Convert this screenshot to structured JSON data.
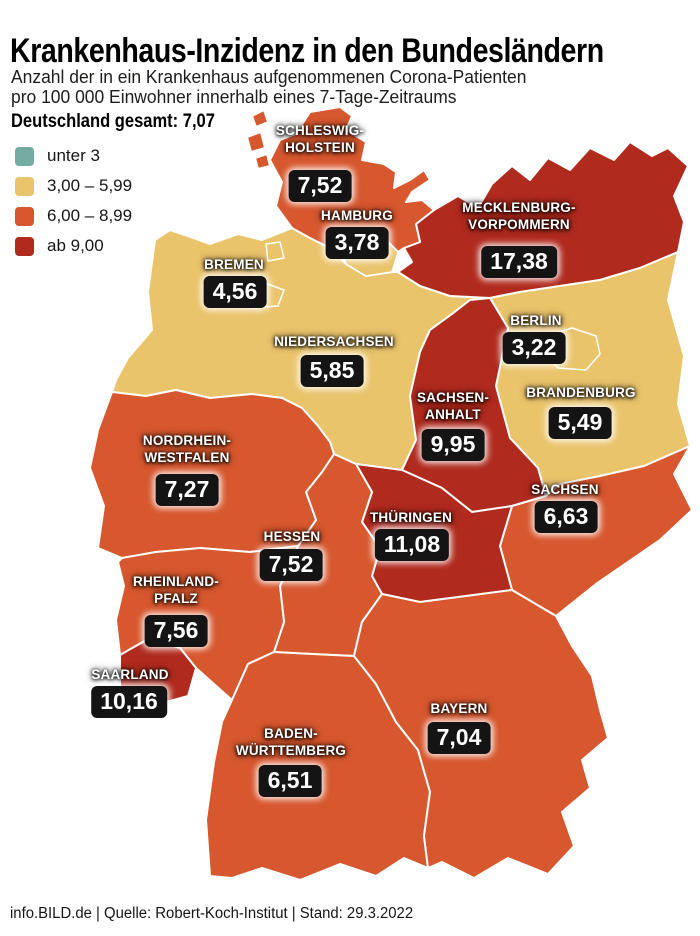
{
  "header": {
    "title": "Krankenhaus-Inzidenz in den Bundesländern",
    "subtitle_line1": "Anzahl der in ein Krankenhaus aufgenommenen Corona-Patienten",
    "subtitle_line2": "pro 100 000 Einwohner innerhalb eines 7-Tage-Zeitraums",
    "total_label": "Deutschland gesamt: 7,07"
  },
  "footer": {
    "source_line": "info.BILD.de | Quelle: Robert-Koch-Institut | Stand: 29.3.2022"
  },
  "chart_data": {
    "type": "choropleth_map",
    "title": "Krankenhaus-Inzidenz in den Bundesländern",
    "metric": "Anzahl der in ein Krankenhaus aufgenommenen Corona-Patienten pro 100 000 Einwohner innerhalb eines 7-Tage-Zeitraums",
    "germany_total": 7.07,
    "germany_total_display": "7,07",
    "classes": [
      "unter 3",
      "3,00 – 5,99",
      "6,00 – 8,99",
      "ab 9,00"
    ],
    "class_colors": [
      "#74aba3",
      "#eac46b",
      "#d7572e",
      "#b02a1e"
    ],
    "states": [
      {
        "id": "schleswig-holstein",
        "name": "SCHLESWIG-HOLSTEIN",
        "label_lines": [
          "SCHLESWIG-",
          "HOLSTEIN"
        ],
        "display_value": "7,52",
        "value": 7.52,
        "class_index": 2
      },
      {
        "id": "hamburg",
        "name": "HAMBURG",
        "label_lines": [
          "HAMBURG"
        ],
        "display_value": "3,78",
        "value": 3.78,
        "class_index": 1
      },
      {
        "id": "mecklenburg-vorpommern",
        "name": "MECKLENBURG-VORPOMMERN",
        "label_lines": [
          "MECKLENBURG-",
          "VORPOMMERN"
        ],
        "display_value": "17,38",
        "value": 17.38,
        "class_index": 3
      },
      {
        "id": "bremen",
        "name": "BREMEN",
        "label_lines": [
          "BREMEN"
        ],
        "display_value": "4,56",
        "value": 4.56,
        "class_index": 1
      },
      {
        "id": "niedersachsen",
        "name": "NIEDERSACHSEN",
        "label_lines": [
          "NIEDERSACHSEN"
        ],
        "display_value": "5,85",
        "value": 5.85,
        "class_index": 1
      },
      {
        "id": "berlin",
        "name": "BERLIN",
        "label_lines": [
          "BERLIN"
        ],
        "display_value": "3,22",
        "value": 3.22,
        "class_index": 1
      },
      {
        "id": "brandenburg",
        "name": "BRANDENBURG",
        "label_lines": [
          "BRANDENBURG"
        ],
        "display_value": "5,49",
        "value": 5.49,
        "class_index": 1
      },
      {
        "id": "sachsen-anhalt",
        "name": "SACHSEN-ANHALT",
        "label_lines": [
          "SACHSEN-",
          "ANHALT"
        ],
        "display_value": "9,95",
        "value": 9.95,
        "class_index": 3
      },
      {
        "id": "nordrhein-westfalen",
        "name": "NORDRHEIN-WESTFALEN",
        "label_lines": [
          "NORDRHEIN-",
          "WESTFALEN"
        ],
        "display_value": "7,27",
        "value": 7.27,
        "class_index": 2
      },
      {
        "id": "hessen",
        "name": "HESSEN",
        "label_lines": [
          "HESSEN"
        ],
        "display_value": "7,52",
        "value": 7.52,
        "class_index": 2
      },
      {
        "id": "thueringen",
        "name": "THÜRINGEN",
        "label_lines": [
          "THÜRINGEN"
        ],
        "display_value": "11,08",
        "value": 11.08,
        "class_index": 3
      },
      {
        "id": "sachsen",
        "name": "SACHSEN",
        "label_lines": [
          "SACHSEN"
        ],
        "display_value": "6,63",
        "value": 6.63,
        "class_index": 2
      },
      {
        "id": "rheinland-pfalz",
        "name": "RHEINLAND-PFALZ",
        "label_lines": [
          "RHEINLAND-",
          "PFALZ"
        ],
        "display_value": "7,56",
        "value": 7.56,
        "class_index": 2
      },
      {
        "id": "saarland",
        "name": "SAARLAND",
        "label_lines": [
          "SAARLAND"
        ],
        "display_value": "10,16",
        "value": 10.16,
        "class_index": 3
      },
      {
        "id": "baden-wuerttemberg",
        "name": "BADEN-WÜRTTEMBERG",
        "label_lines": [
          "BADEN-",
          "WÜRTTEMBERG"
        ],
        "display_value": "6,51",
        "value": 6.51,
        "class_index": 2
      },
      {
        "id": "bayern",
        "name": "BAYERN",
        "label_lines": [
          "BAYERN"
        ],
        "display_value": "7,04",
        "value": 7.04,
        "class_index": 2
      }
    ],
    "legend_position": "top-left",
    "grid": false
  }
}
